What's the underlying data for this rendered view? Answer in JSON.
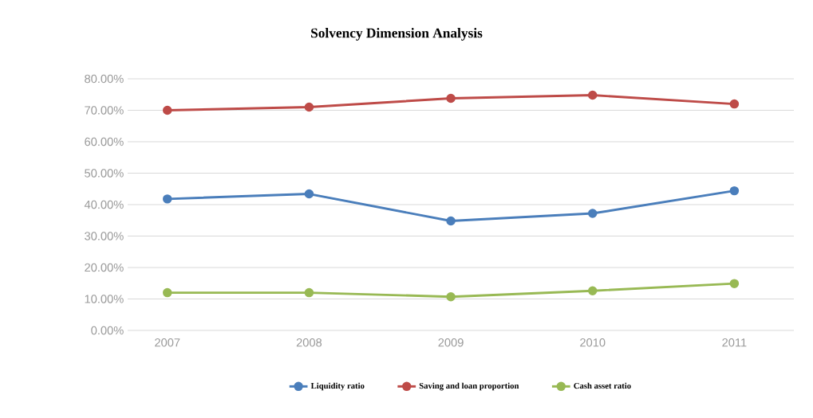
{
  "chart_data": {
    "type": "line",
    "title": "Solvency Dimension Analysis",
    "categories": [
      "2007",
      "2008",
      "2009",
      "2010",
      "2011"
    ],
    "series": [
      {
        "name": "Liquidity ratio",
        "color": "#4a7ebb",
        "values": [
          41.8,
          43.4,
          34.8,
          37.2,
          44.4
        ]
      },
      {
        "name": "Saving and loan proportion",
        "color": "#be4b48",
        "values": [
          70,
          71,
          73.8,
          74.8,
          72
        ]
      },
      {
        "name": "Cash asset ratio",
        "color": "#98b954",
        "values": [
          12,
          12,
          10.7,
          12.6,
          14.9
        ]
      }
    ],
    "ylim": [
      0,
      80
    ],
    "yticks": [
      {
        "value": 0,
        "label": "0.00%"
      },
      {
        "value": 10,
        "label": "10.00%"
      },
      {
        "value": 20,
        "label": "20.00%"
      },
      {
        "value": 30,
        "label": "30.00%"
      },
      {
        "value": 40,
        "label": "40.00%"
      },
      {
        "value": 50,
        "label": "50.00%"
      },
      {
        "value": 60,
        "label": "60.00%"
      },
      {
        "value": 70,
        "label": "70.00%"
      },
      {
        "value": 80,
        "label": "80.00%"
      }
    ],
    "grid": "y",
    "legend": "bottom",
    "marker": "circle",
    "line_style": "solid"
  }
}
